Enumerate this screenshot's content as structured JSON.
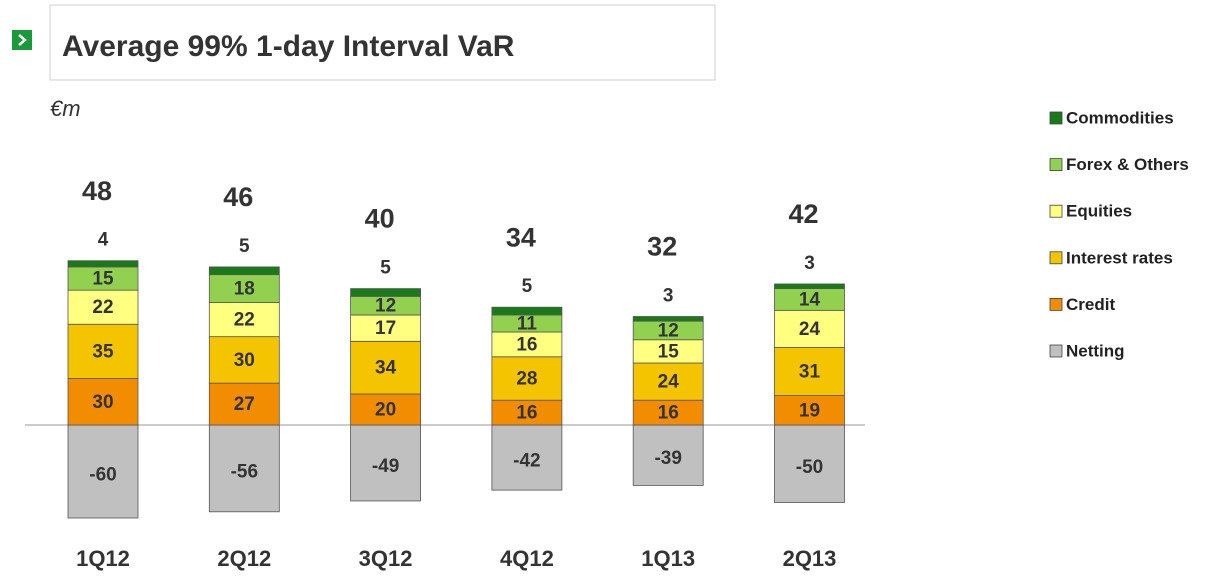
{
  "chart_data": {
    "type": "stacked_bar",
    "title": "Average 99% 1-day Interval VaR",
    "unit_label": "€m",
    "categories": [
      "1Q12",
      "2Q12",
      "3Q12",
      "4Q12",
      "1Q13",
      "2Q13"
    ],
    "totals": [
      48,
      46,
      40,
      34,
      32,
      42
    ],
    "series": [
      {
        "name": "Netting",
        "color": "#c0c0c0",
        "values": [
          -60,
          -56,
          -49,
          -42,
          -39,
          -50
        ]
      },
      {
        "name": "Credit",
        "color": "#f28c00",
        "values": [
          30,
          27,
          20,
          16,
          16,
          19
        ]
      },
      {
        "name": "Interest rates",
        "color": "#f5c400",
        "values": [
          35,
          30,
          34,
          28,
          24,
          31
        ]
      },
      {
        "name": "Equities",
        "color": "#ffff80",
        "values": [
          22,
          22,
          17,
          16,
          15,
          24
        ]
      },
      {
        "name": "Forex & Others",
        "color": "#92d050",
        "values": [
          15,
          18,
          12,
          11,
          12,
          14
        ]
      },
      {
        "name": "Commodities",
        "color": "#1a7a1a",
        "values": [
          4,
          5,
          5,
          5,
          3,
          3
        ]
      }
    ]
  }
}
